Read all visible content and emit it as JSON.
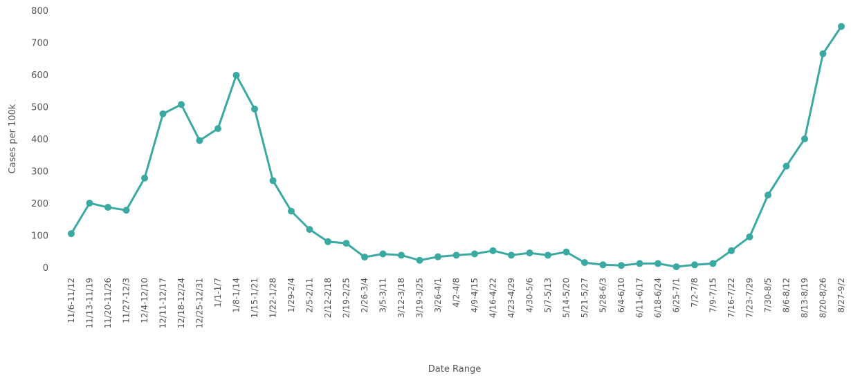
{
  "chart_data": {
    "type": "line",
    "xlabel": "Date Range",
    "ylabel": "Cases per 100k",
    "categories": [
      "11/6-11/12",
      "11/13-11/19",
      "11/20-11/26",
      "11/27-12/3",
      "12/4-12/10",
      "12/11-12/17",
      "12/18-12/24",
      "12/25-12/31",
      "1/1-1/7",
      "1/8-1/14",
      "1/15-1/21",
      "1/22-1/28",
      "1/29-2/4",
      "2/5-2/11",
      "2/12-2/18",
      "2/19-2/25",
      "2/26-3/4",
      "3/5-3/11",
      "3/12-3/18",
      "3/19-3/25",
      "3/26-4/1",
      "4/2-4/8",
      "4/9-4/15",
      "4/16-4/22",
      "4/23-4/29",
      "4/30-5/6",
      "5/7-5/13",
      "5/14-5/20",
      "5/21-5/27",
      "5/28-6/3",
      "6/4-6/10",
      "6/11-6/17",
      "6/18-6/24",
      "6/25-7/1",
      "7/2-7/8",
      "7/9-7/15",
      "7/16-7/22",
      "7/23-7/29",
      "7/30-8/5",
      "8/6-8/12",
      "8/13-8/19",
      "8/20-8/26",
      "8/27-9/2"
    ],
    "series": [
      {
        "name": "Cases per 100k",
        "color": "#3aa9a1",
        "values": [
          105,
          200,
          187,
          178,
          278,
          478,
          507,
          395,
          432,
          598,
          493,
          270,
          175,
          118,
          80,
          75,
          32,
          42,
          38,
          22,
          33,
          38,
          42,
          52,
          38,
          45,
          38,
          48,
          15,
          8,
          6,
          12,
          12,
          2,
          8,
          12,
          52,
          95,
          225,
          315,
          400,
          665,
          750
        ]
      }
    ],
    "ylim": [
      0,
      800
    ],
    "yticks": [
      0,
      100,
      200,
      300,
      400,
      500,
      600,
      700,
      800
    ],
    "grid": false
  }
}
